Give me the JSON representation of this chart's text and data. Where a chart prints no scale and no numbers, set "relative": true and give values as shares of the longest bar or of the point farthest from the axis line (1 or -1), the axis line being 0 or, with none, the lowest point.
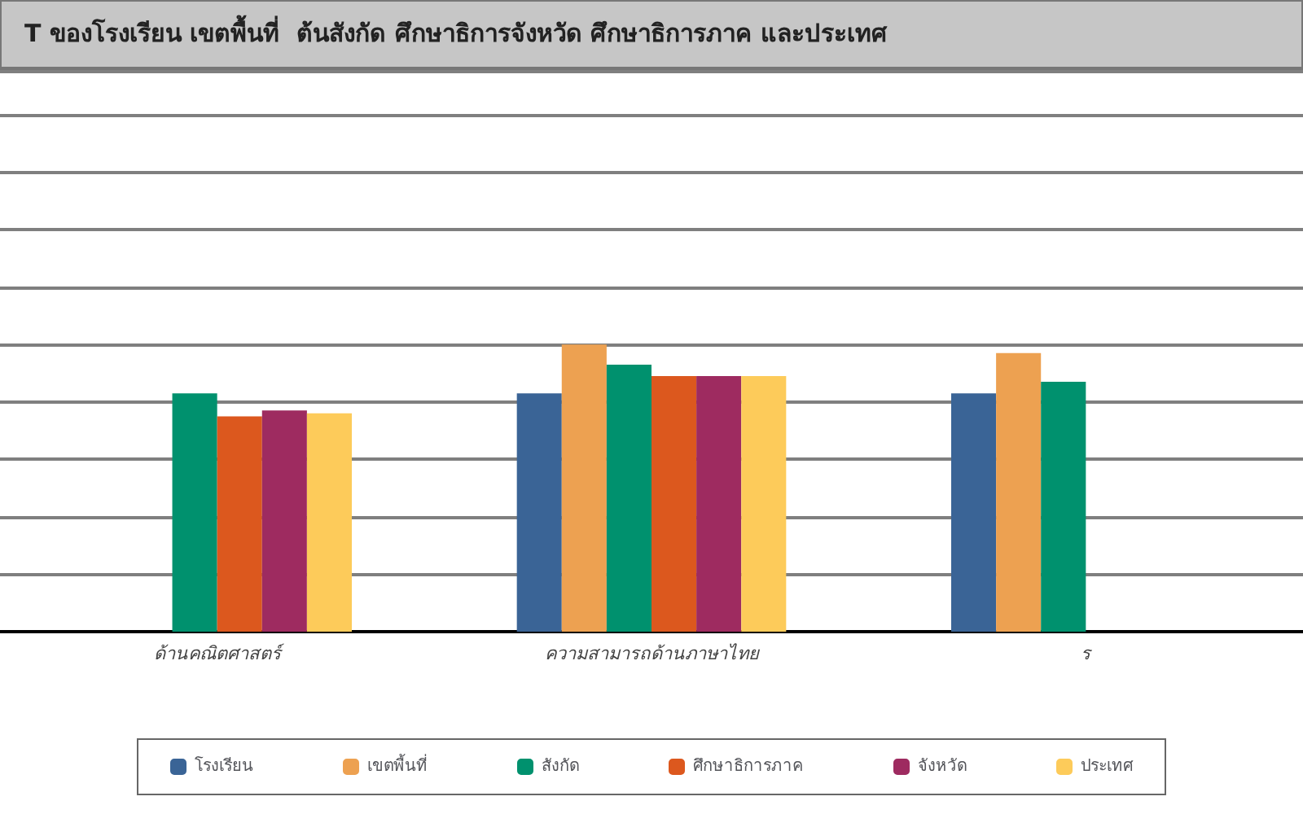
{
  "chart_data": {
    "type": "bar",
    "title": "T ของโรงเรียน เขตพื้นที่  ต้นสังกัด ศึกษาธิการจังหวัด ศึกษาธิการภาค และประเทศ",
    "categories": [
      "ด้านคณิตศาสตร์",
      "ความสามารถด้านภาษาไทย",
      "ร"
    ],
    "relative": true,
    "grid": "y",
    "legend": "bottom",
    "series": [
      {
        "name": "โรงเรียน",
        "color": "#3a6496",
        "values": [
          null,
          0.83,
          0.83
        ]
      },
      {
        "name": "เขตพื้นที่",
        "color": "#eda151",
        "values": [
          null,
          1,
          0.97
        ]
      },
      {
        "name": "สังกัด",
        "color": "#00916e",
        "values": [
          0.83,
          0.93,
          0.87
        ]
      },
      {
        "name": "ศึกษาธิการภาค",
        "color": "#dc581e",
        "values": [
          0.75,
          0.89,
          null
        ]
      },
      {
        "name": "จังหวัด",
        "color": "#9e2b60",
        "values": [
          0.77,
          0.89,
          null
        ]
      },
      {
        "name": "ประเทศ",
        "color": "#fdcb5a",
        "values": [
          0.76,
          0.89,
          null
        ]
      }
    ]
  }
}
